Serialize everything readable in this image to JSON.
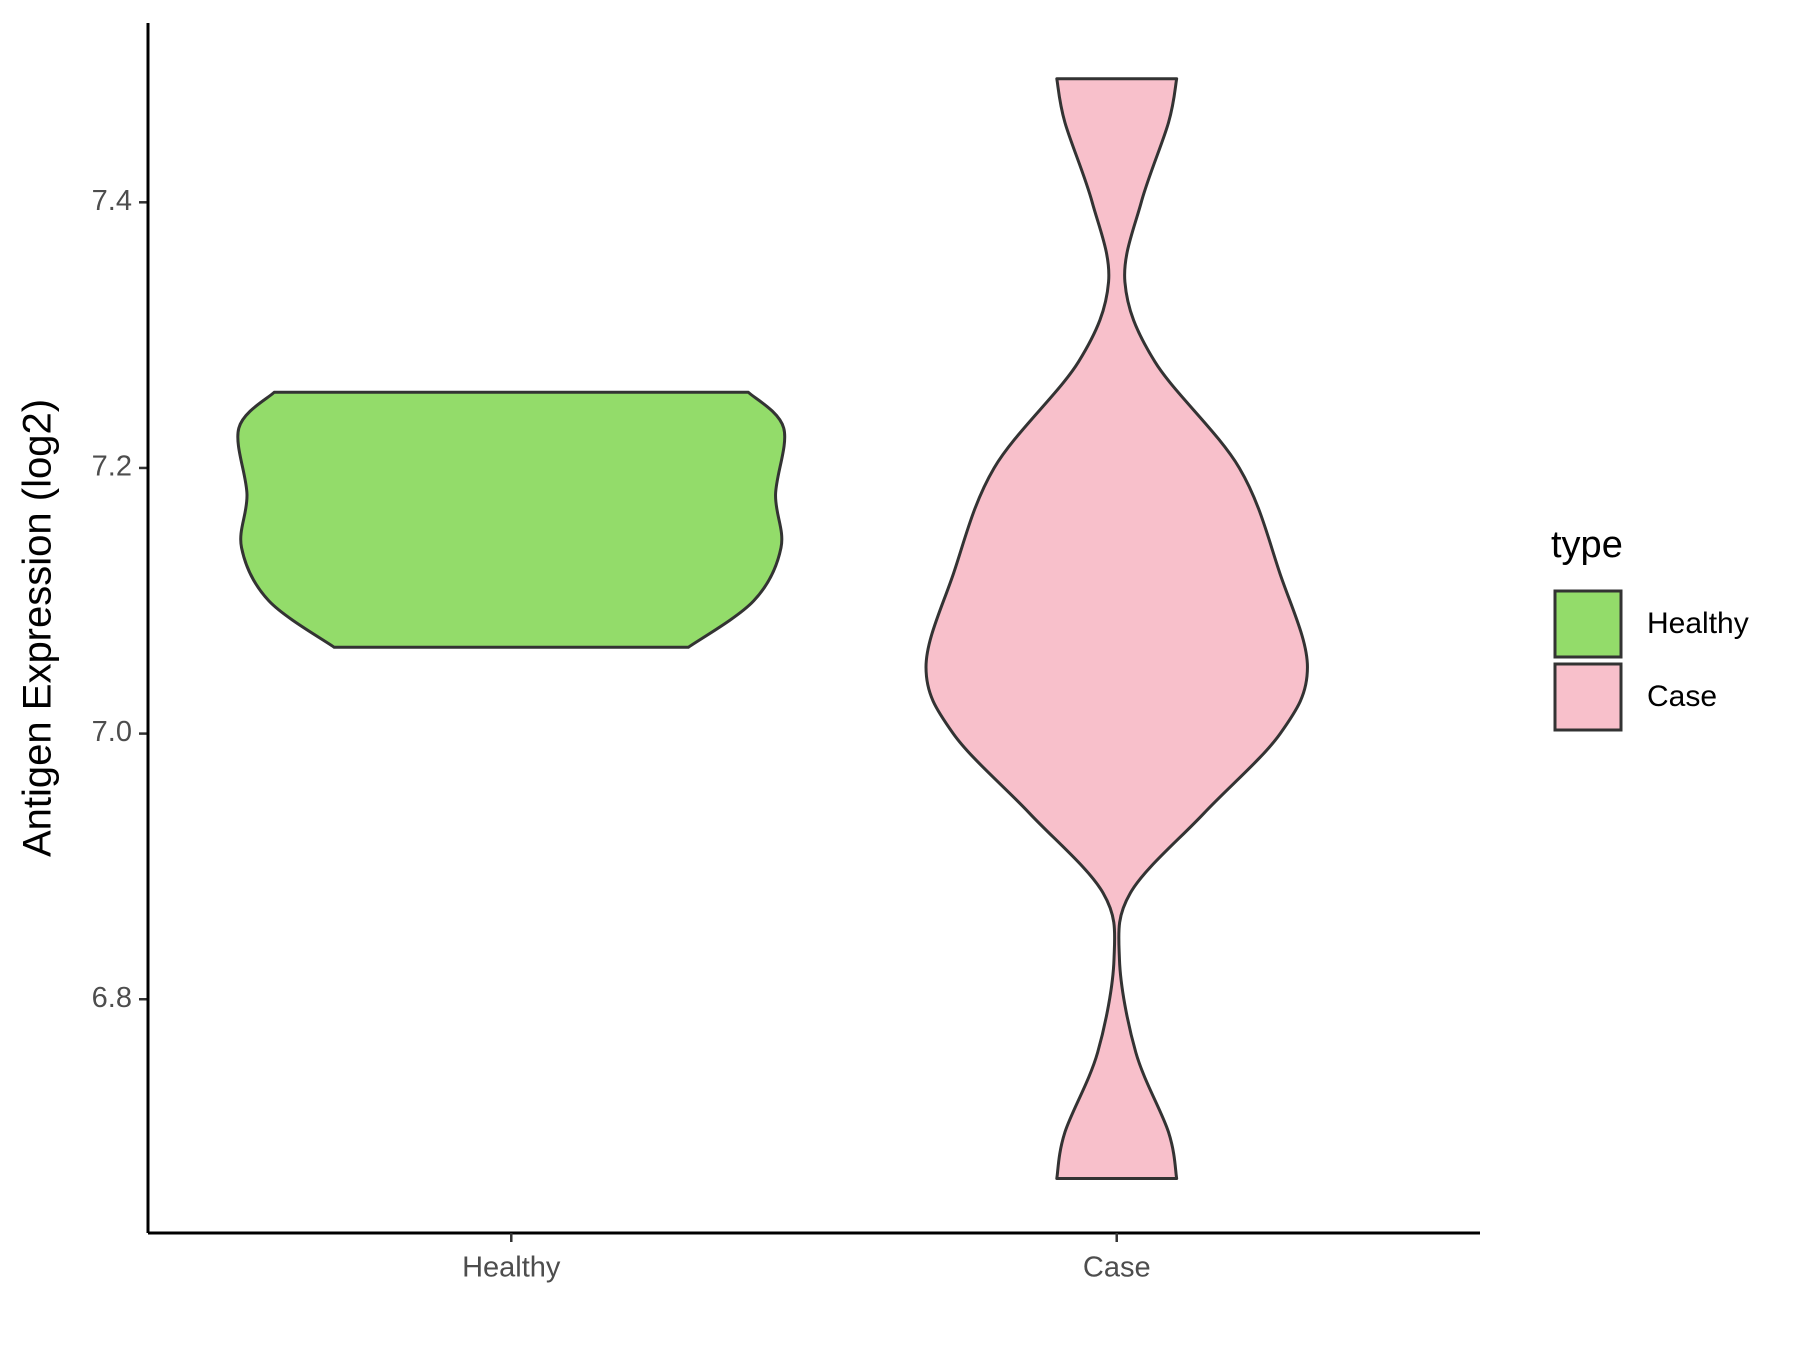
{
  "chart_data": {
    "type": "violin",
    "ylabel": "Antigen Expression (log2)",
    "legend_title": "type",
    "legend": "right",
    "categories": [
      "Healthy",
      "Case"
    ],
    "ylim": [
      6.624,
      7.535
    ],
    "yticks": [
      6.8,
      {
        "value": 7,
        "label": "7.0"
      },
      7.2,
      7.4
    ],
    "series": [
      {
        "name": "Healthy",
        "color": "#93dc6a",
        "y": [
          7.257,
          7.23,
          7.18,
          7.14,
          7.1,
          7.065
        ],
        "widths": [
          0.87,
          1.0,
          0.97,
          0.99,
          0.89,
          0.65
        ]
      },
      {
        "name": "Case",
        "color": "#f8c0cb",
        "y": [
          7.493,
          7.46,
          7.4,
          7.34,
          7.28,
          7.2,
          7.12,
          7.05,
          7.0,
          6.94,
          6.88,
          6.83,
          6.76,
          6.7,
          6.665
        ],
        "widths": [
          0.22,
          0.19,
          0.09,
          0.03,
          0.14,
          0.45,
          0.6,
          0.7,
          0.6,
          0.32,
          0.05,
          0.01,
          0.07,
          0.19,
          0.22
        ]
      }
    ]
  }
}
